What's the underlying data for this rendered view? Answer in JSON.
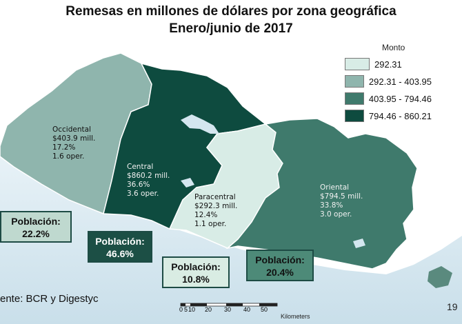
{
  "title": {
    "line1": "Remesas en millones de dólares por zona geográfica",
    "line2": "Enero/junio de 2017"
  },
  "legend": {
    "title": "Monto",
    "items": [
      {
        "label": "292.31",
        "color": "#d8ece6"
      },
      {
        "label": "292.31 - 403.95",
        "color": "#8fb5ad"
      },
      {
        "label": "403.95 - 794.46",
        "color": "#3f7a6c"
      },
      {
        "label": "794.46 - 860.21",
        "color": "#0e4b3f"
      }
    ]
  },
  "regions": {
    "occidental": {
      "name": "Occidental",
      "amount": "$403.9 mill.",
      "share": "17.2%",
      "ops": "1.6 oper.",
      "color": "#8fb5ad"
    },
    "central": {
      "name": "Central",
      "amount": "$860.2 mill.",
      "share": "36.6%",
      "ops": "3.6 oper.",
      "color": "#0e4b3f"
    },
    "paracentral": {
      "name": "Paracentral",
      "amount": "$292.3 mill.",
      "share": "12.4%",
      "ops": "1.1 oper.",
      "color": "#d8ece6"
    },
    "oriental": {
      "name": "Oriental",
      "amount": "$794.5 mill.",
      "share": "33.8%",
      "ops": "3.0 oper.",
      "color": "#3f7a6c"
    }
  },
  "population": {
    "label": "Población:",
    "occidental": {
      "value": "22.2%",
      "bg": "#bfd9cf",
      "fg": "#111111"
    },
    "central": {
      "value": "46.6%",
      "bg": "#1c4f45",
      "fg": "#ffffff"
    },
    "paracentral": {
      "value": "10.8%",
      "bg": "#d9ece3",
      "fg": "#111111"
    },
    "oriental": {
      "value": "20.4%",
      "bg": "#4d8a78",
      "fg": "#111111"
    }
  },
  "source": "ente: BCR y Digestyc",
  "page_number": "19",
  "scale": {
    "ticks": [
      "0",
      "5",
      "10",
      "20",
      "30",
      "40",
      "50"
    ],
    "unit": "Kilometers"
  },
  "colors": {
    "sea": "#d4e6ef",
    "border": "#ffffff"
  }
}
